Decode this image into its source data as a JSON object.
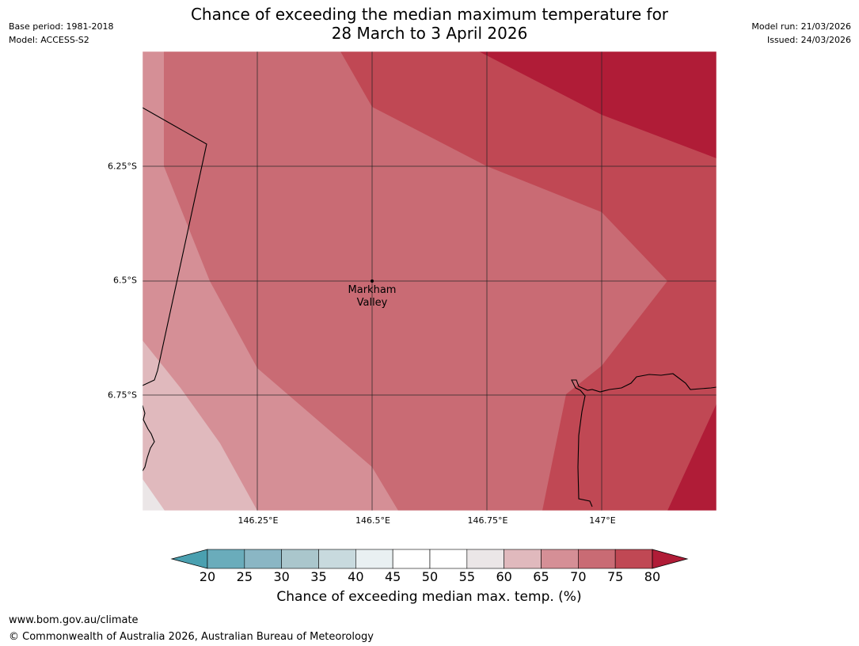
{
  "header": {
    "base_period": "Base period: 1981-2018",
    "model": "Model: ACCESS-S2",
    "title_line1": "Chance of exceeding the median maximum temperature for",
    "title_line2": "28 March to 3 April 2026",
    "model_run": "Model run: 21/03/2026",
    "issued": "Issued: 24/03/2026"
  },
  "map": {
    "lat_labels": [
      "6.25°S",
      "6.5°S",
      "6.75°S"
    ],
    "lon_labels": [
      "146.25°E",
      "146.5°E",
      "146.75°E",
      "147°E"
    ],
    "place": {
      "name_line1": "Markham",
      "name_line2": "Valley"
    }
  },
  "colorbar": {
    "ticks": [
      "20",
      "25",
      "30",
      "35",
      "40",
      "45",
      "50",
      "55",
      "60",
      "65",
      "70",
      "75",
      "80"
    ],
    "colors": [
      "#4aa0b0",
      "#6aacbb",
      "#8ab6c4",
      "#aac6cc",
      "#c8dade",
      "#e9f0f2",
      "#ffffff",
      "#ffffff",
      "#ebe6e7",
      "#e0b9bd",
      "#d58f96",
      "#c96b74",
      "#c04854",
      "#b01c37"
    ],
    "label": "Chance of exceeding median max. temp. (%)"
  },
  "footer": {
    "url": "www.bom.gov.au/climate",
    "copyright": "© Commonwealth of Australia 2026, Australian Bureau of Meteorology"
  }
}
